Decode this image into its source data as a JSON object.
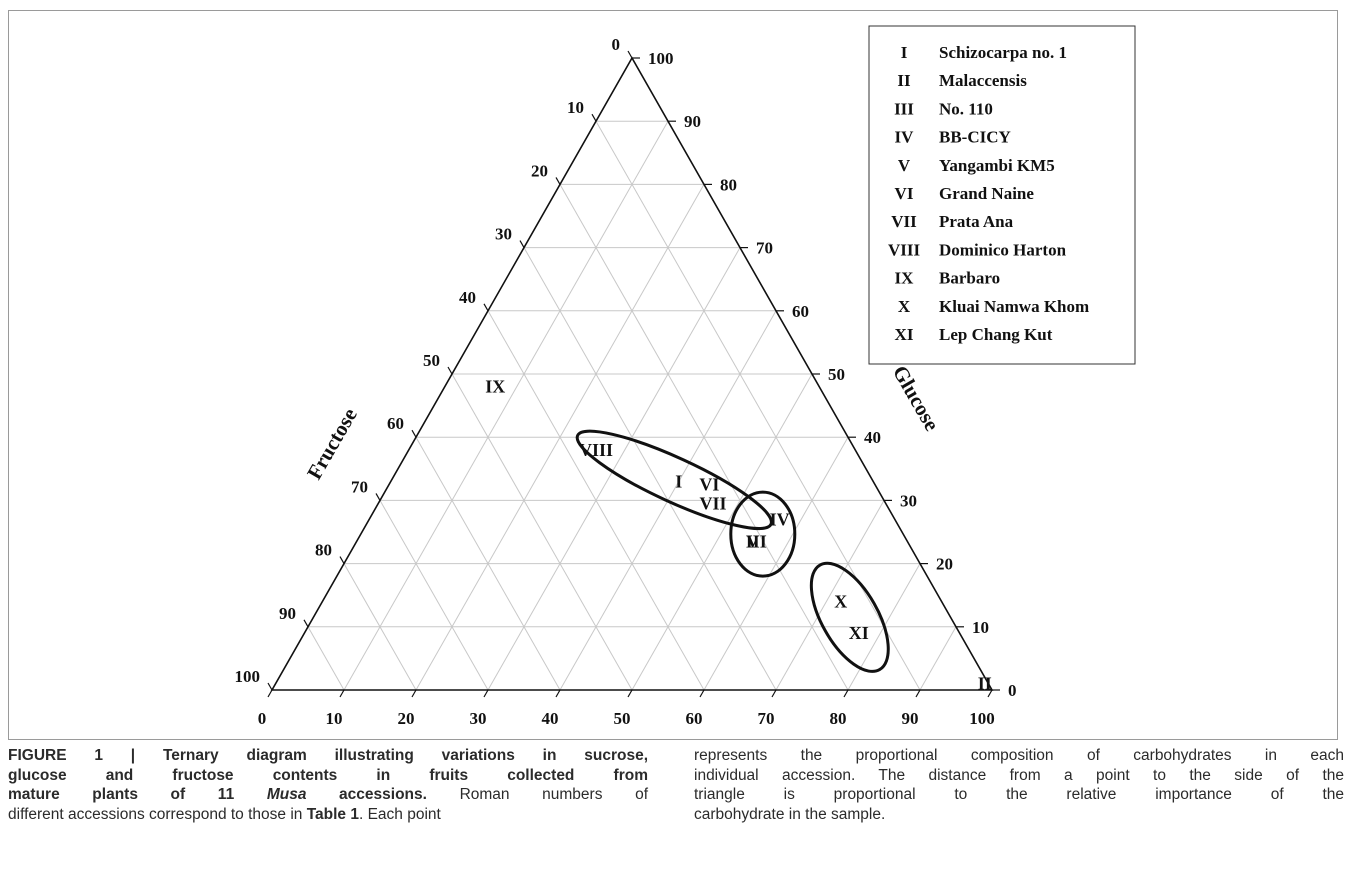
{
  "chart_data": {
    "type": "scatter",
    "subtype": "ternary",
    "axes": {
      "bottom": {
        "label": "Sucrose",
        "ticks": [
          "0",
          "10",
          "20",
          "30",
          "40",
          "50",
          "60",
          "70",
          "80",
          "90",
          "100"
        ]
      },
      "right": {
        "label": "Glucose",
        "ticks": [
          "0",
          "10",
          "20",
          "30",
          "40",
          "50",
          "60",
          "70",
          "80",
          "90",
          "100"
        ]
      },
      "left": {
        "label": "Fructose",
        "ticks": [
          "0",
          "10",
          "20",
          "30",
          "40",
          "50",
          "60",
          "70",
          "80",
          "90",
          "100"
        ]
      }
    },
    "grid": true,
    "legend_position": "top-right",
    "legend": [
      {
        "code": "I",
        "name": "Schizocarpa no. 1"
      },
      {
        "code": "II",
        "name": "Malaccensis"
      },
      {
        "code": "III",
        "name": "No. 110"
      },
      {
        "code": "IV",
        "name": "BB-CICY"
      },
      {
        "code": "V",
        "name": "Yangambi KM5"
      },
      {
        "code": "VI",
        "name": "Grand Naine"
      },
      {
        "code": "VII",
        "name": "Prata Ana"
      },
      {
        "code": "VIII",
        "name": "Dominico Harton"
      },
      {
        "code": "IX",
        "name": "Barbaro"
      },
      {
        "code": "X",
        "name": "Kluai Namwa Khom"
      },
      {
        "code": "XI",
        "name": "Lep Chang Kut"
      }
    ],
    "points": [
      {
        "label": "I",
        "sucrose": 40,
        "glucose": 33,
        "fructose": 27
      },
      {
        "label": "II",
        "sucrose": 98.5,
        "glucose": 1,
        "fructose": 0.5
      },
      {
        "label": "III",
        "sucrose": 55.5,
        "glucose": 23.5,
        "fructose": 21
      },
      {
        "label": "IV",
        "sucrose": 57,
        "glucose": 27,
        "fructose": 16
      },
      {
        "label": "V",
        "sucrose": 55,
        "glucose": 23.5,
        "fructose": 21.5
      },
      {
        "label": "VI",
        "sucrose": 44.5,
        "glucose": 32.5,
        "fructose": 23
      },
      {
        "label": "VII",
        "sucrose": 46.5,
        "glucose": 29.5,
        "fructose": 24
      },
      {
        "label": "VIII",
        "sucrose": 26,
        "glucose": 38,
        "fructose": 36
      },
      {
        "label": "IX",
        "sucrose": 7,
        "glucose": 48,
        "fructose": 45
      },
      {
        "label": "X",
        "sucrose": 72,
        "glucose": 14,
        "fructose": 14
      },
      {
        "label": "XI",
        "sucrose": 77,
        "glucose": 9,
        "fructose": 14
      }
    ],
    "groups": [
      {
        "members": [
          "VIII",
          "I",
          "VI",
          "VII"
        ]
      },
      {
        "members": [
          "IV",
          "V",
          "III"
        ]
      },
      {
        "members": [
          "X",
          "XI"
        ]
      }
    ]
  },
  "caption": {
    "left": [
      [
        {
          "t": "FIGURE 1 | Ternary diagram illustrating variations in sucrose,",
          "b": true
        }
      ],
      [
        {
          "t": "glucose and fructose contents in fruits collected from",
          "b": true
        }
      ],
      [
        {
          "t": "mature plants of 11 ",
          "b": true
        },
        {
          "t": "Musa",
          "b": true,
          "i": true
        },
        {
          "t": " accessions.",
          "b": true
        },
        {
          "t": " Roman numbers of"
        }
      ],
      [
        {
          "t": "different accessions correspond to those in "
        },
        {
          "t": "Table 1",
          "b": true
        },
        {
          "t": ". Each point"
        }
      ]
    ],
    "right": [
      [
        {
          "t": "represents the proportional composition of carbohydrates in each"
        }
      ],
      [
        {
          "t": "individual accession. The distance from a point to the side of the"
        }
      ],
      [
        {
          "t": "triangle is proportional to the relative importance of the"
        }
      ],
      [
        {
          "t": "carbohydrate in the sample."
        }
      ]
    ]
  }
}
